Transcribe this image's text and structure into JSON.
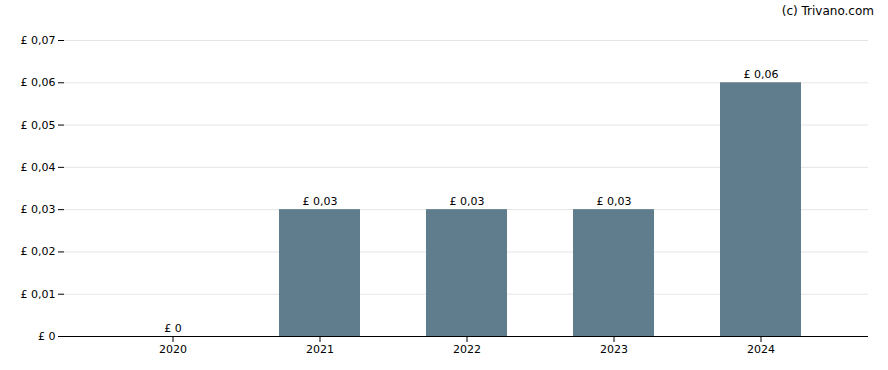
{
  "chart_data": {
    "type": "bar",
    "categories": [
      "2020",
      "2021",
      "2022",
      "2023",
      "2024"
    ],
    "values": [
      0.0,
      0.03,
      0.03,
      0.03,
      0.06
    ],
    "value_labels": [
      "£ 0",
      "£ 0,03",
      "£ 0,03",
      "£ 0,03",
      "£ 0,06"
    ],
    "data_labels": true,
    "color": "#5f7d8c",
    "ylim": [
      0,
      0.07
    ],
    "yticks": [
      {
        "value": 0.0,
        "label": "£ 0"
      },
      {
        "value": 0.01,
        "label": "£ 0,01"
      },
      {
        "value": 0.02,
        "label": "£ 0,02"
      },
      {
        "value": 0.03,
        "label": "£ 0,03"
      },
      {
        "value": 0.04,
        "label": "£ 0,04"
      },
      {
        "value": 0.05,
        "label": "£ 0,05"
      },
      {
        "value": 0.06,
        "label": "£ 0,06"
      },
      {
        "value": 0.07,
        "label": "£ 0,07"
      }
    ],
    "grid": true,
    "annotations": [
      "(c) Trivano.com"
    ]
  }
}
